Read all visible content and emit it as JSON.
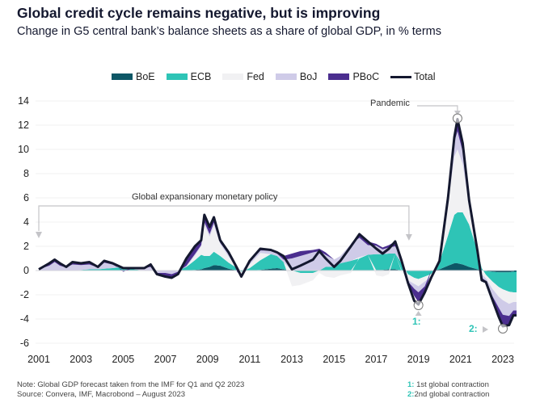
{
  "header": {
    "title": "Global credit cycle remains negative, but is improving",
    "subtitle": "Change in G5 central bank’s balance sheets as a share of global GDP, in % terms"
  },
  "chart_data": {
    "type": "area",
    "title": "Global credit cycle remains negative, but is improving",
    "subtitle": "Change in G5 central bank’s balance sheets as a share of global GDP, in % terms",
    "xlabel": "",
    "ylabel": "",
    "xlim": [
      2001,
      2023.65
    ],
    "ylim": [
      -6,
      14
    ],
    "yticks": [
      14,
      12,
      10,
      8,
      6,
      4,
      2,
      0,
      -2,
      -4,
      -6
    ],
    "xticks": [
      "2001",
      "2003",
      "2005",
      "2007",
      "2009",
      "2011",
      "2013",
      "2015",
      "2017",
      "2019",
      "2021",
      "2023"
    ],
    "grid": true,
    "legend_position": "top",
    "stacked": true,
    "x": [
      2001.0,
      2001.5,
      2001.75,
      2002.0,
      2002.3,
      2002.6,
      2003.0,
      2003.4,
      2003.8,
      2004.1,
      2004.5,
      2005.0,
      2005.5,
      2006.0,
      2006.3,
      2006.6,
      2007.0,
      2007.3,
      2007.6,
      2008.0,
      2008.4,
      2008.7,
      2008.85,
      2009.1,
      2009.3,
      2009.6,
      2010.0,
      2010.4,
      2010.6,
      2011.0,
      2011.5,
      2012.0,
      2012.3,
      2012.6,
      2013.0,
      2013.4,
      2014.0,
      2014.3,
      2014.6,
      2015.0,
      2015.3,
      2015.8,
      2016.2,
      2016.6,
      2017.0,
      2017.3,
      2017.6,
      2017.9,
      2018.2,
      2018.5,
      2018.8,
      2019.0,
      2019.3,
      2019.6,
      2020.0,
      2020.4,
      2020.7,
      2020.85,
      2021.1,
      2021.4,
      2021.8,
      2022.0,
      2022.2,
      2022.5,
      2022.8,
      2023.0,
      2023.3,
      2023.5,
      2023.65
    ],
    "series": [
      {
        "name": "BoE",
        "color": "#0e5766",
        "values": [
          0,
          0,
          0,
          0,
          0,
          0,
          0,
          0,
          0,
          0,
          0,
          0,
          0,
          0,
          0,
          0,
          0,
          0,
          0,
          0,
          0.05,
          0.1,
          0.2,
          0.3,
          0.45,
          0.4,
          0.15,
          0,
          0,
          0,
          0.05,
          0.15,
          0.2,
          0.1,
          0,
          0,
          0,
          0,
          0,
          0,
          0,
          0,
          0,
          0,
          0.05,
          0.05,
          0.1,
          0.1,
          0,
          0,
          0,
          0,
          0,
          0,
          0.1,
          0.4,
          0.6,
          0.6,
          0.5,
          0.3,
          0.1,
          0,
          -0.05,
          -0.1,
          -0.15,
          -0.15,
          -0.15,
          -0.1,
          -0.1
        ]
      },
      {
        "name": "ECB",
        "color": "#2ec4b6",
        "values": [
          0,
          0,
          0,
          0,
          0,
          0,
          0.05,
          0.1,
          0.1,
          0.15,
          0.2,
          0.3,
          0.1,
          0,
          0,
          0,
          0,
          0,
          0,
          0.3,
          0.8,
          1.2,
          1.0,
          0.9,
          1.1,
          0.8,
          0.5,
          0.2,
          -0.1,
          0.2,
          0.8,
          1.2,
          1.0,
          0.6,
          0,
          -0.2,
          -0.2,
          0,
          0.3,
          0.3,
          0.6,
          0.8,
          1.0,
          1.3,
          1.3,
          1.3,
          1.3,
          1.3,
          0.6,
          -0.3,
          -0.6,
          -0.7,
          -0.5,
          -0.3,
          0.6,
          2.5,
          4.0,
          4.2,
          4.3,
          3.5,
          1.5,
          0.2,
          -0.3,
          -0.8,
          -1.2,
          -1.4,
          -1.6,
          -1.7,
          -1.7
        ]
      },
      {
        "name": "Fed",
        "color": "#f1f1f3",
        "values": [
          0,
          0,
          0,
          0,
          0,
          0,
          0,
          0,
          0,
          0,
          0,
          0,
          0,
          0,
          0,
          0,
          0,
          0,
          0,
          0,
          0.4,
          0.7,
          2.6,
          1.6,
          2.2,
          1.0,
          0.5,
          0,
          -0.2,
          0.3,
          0.6,
          0,
          0,
          0,
          -1.3,
          -1.0,
          -0.6,
          -0.2,
          -0.5,
          -0.6,
          -0.4,
          -0.2,
          0.1,
          0,
          -0.4,
          -0.5,
          -0.3,
          0,
          -0.1,
          -0.5,
          -0.5,
          -0.6,
          -0.4,
          -0.2,
          0.1,
          2.5,
          4.8,
          5.2,
          4.0,
          1.5,
          0,
          -0.3,
          -0.3,
          -0.6,
          -0.8,
          -0.9,
          -1.0,
          -0.8,
          -0.8
        ]
      },
      {
        "name": "BoJ",
        "color": "#cfcbe8",
        "values": [
          0.1,
          0.4,
          0.7,
          0.4,
          0.25,
          0.5,
          0.4,
          0.4,
          0.15,
          0.5,
          0.3,
          0,
          0.1,
          0.2,
          0.3,
          -0.2,
          -0.2,
          -0.3,
          -0.1,
          0.1,
          0.1,
          0.1,
          0.2,
          0.2,
          0.2,
          0.1,
          0.2,
          0.1,
          0,
          0.2,
          0.2,
          0.3,
          0.2,
          0.2,
          1.0,
          1.2,
          1.5,
          1.6,
          1.0,
          0.6,
          0.6,
          1.4,
          1.6,
          0.8,
          0.7,
          0.4,
          0.5,
          0.6,
          0.3,
          -0.1,
          -0.4,
          -0.5,
          -0.4,
          -0.1,
          0,
          0.4,
          1.2,
          1.5,
          1.0,
          0.3,
          0,
          -0.3,
          -0.2,
          -0.6,
          -0.9,
          -1.2,
          -1.0,
          -0.7,
          -0.7
        ]
      },
      {
        "name": "PBoC",
        "color": "#4b2e8f",
        "values": [
          0,
          0.2,
          0.2,
          0.2,
          0.05,
          0.2,
          0.15,
          0.2,
          0.05,
          0.15,
          0.1,
          -0.1,
          0,
          0,
          0.2,
          -0.1,
          -0.3,
          -0.3,
          -0.2,
          0.6,
          0.7,
          0.4,
          0.6,
          0.6,
          0.45,
          0.2,
          0.15,
          -0.1,
          -0.2,
          0.1,
          0.15,
          0.05,
          0.1,
          0.3,
          0.4,
          0.4,
          0.2,
          0.2,
          0.2,
          0,
          0,
          0,
          0.3,
          0.3,
          0.15,
          0.15,
          0.2,
          0.4,
          0,
          -0.1,
          -0.6,
          -0.8,
          -0.5,
          0,
          0,
          0.2,
          0.4,
          1.0,
          0.7,
          0.2,
          0,
          -0.3,
          -0.2,
          -0.3,
          -0.75,
          -0.95,
          -0.75,
          -0.4,
          -0.4
        ]
      }
    ],
    "total": {
      "name": "Total",
      "color": "#14182f",
      "values": [
        0.1,
        0.6,
        0.9,
        0.6,
        0.3,
        0.7,
        0.6,
        0.7,
        0.3,
        0.8,
        0.6,
        0.2,
        0.2,
        0.2,
        0.5,
        -0.3,
        -0.5,
        -0.6,
        -0.3,
        1.0,
        2.0,
        2.5,
        4.6,
        3.6,
        4.4,
        2.5,
        1.5,
        0.2,
        -0.5,
        0.8,
        1.8,
        1.7,
        1.5,
        1.2,
        0.1,
        0.4,
        0.9,
        1.6,
        1.0,
        0.3,
        0.8,
        2.0,
        3.0,
        2.4,
        1.8,
        1.4,
        1.8,
        2.4,
        0.8,
        -1.0,
        -2.5,
        -2.8,
        -1.8,
        -0.6,
        0.8,
        6.0,
        11.0,
        12.5,
        10.5,
        5.8,
        1.6,
        -0.8,
        -0.95,
        -2.4,
        -3.8,
        -4.6,
        -4.5,
        -3.7,
        -3.7
      ]
    },
    "annotations": [
      {
        "text": "Global expansionary monetary policy",
        "from": 2001,
        "to": 2018.5
      },
      {
        "text": "Pandemic",
        "at": 2020.85,
        "value": 12.5
      },
      {
        "text": "1:",
        "at": 2019.0,
        "value": -2.8,
        "meaning": "1st global contraction"
      },
      {
        "text": "2:",
        "at": 2023.0,
        "value": -4.6,
        "meaning": "2nd global contraction"
      }
    ]
  },
  "legend": [
    {
      "label": "BoE",
      "color": "#0e5766"
    },
    {
      "label": "ECB",
      "color": "#2ec4b6"
    },
    {
      "label": "Fed",
      "color": "#f1f1f3"
    },
    {
      "label": "BoJ",
      "color": "#cfcbe8"
    },
    {
      "label": "PBoC",
      "color": "#4b2e8f"
    },
    {
      "label": "Total",
      "color": "#14182f"
    }
  ],
  "annotations": {
    "policy": "Global expansionary monetary policy",
    "pandemic": "Pandemic",
    "m1": "1:",
    "m2": "2:"
  },
  "footer": {
    "note": "Note: Global GDP forecast taken from the IMF for Q1 and Q2 2023",
    "source": "Source: Convera, IMF, Macrobond – August 2023",
    "key1_num": "1:",
    "key1_text": "1st global contraction",
    "key2_num": "2:",
    "key2_text": "2nd global contraction"
  }
}
